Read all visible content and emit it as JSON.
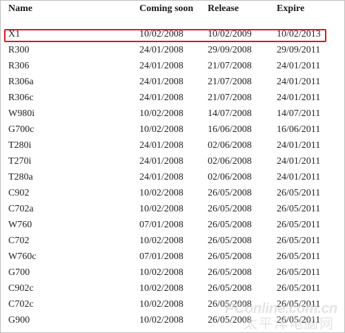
{
  "table": {
    "headers": [
      "Name",
      "Coming soon",
      "Release",
      "Expire"
    ],
    "rows": [
      [
        "X1",
        "10/02/2008",
        "10/02/2009",
        "10/02/2013"
      ],
      [
        "R300",
        "24/01/2008",
        "29/09/2008",
        "29/09/2011"
      ],
      [
        "R306",
        "24/01/2008",
        "21/07/2008",
        "24/01/2011"
      ],
      [
        "R306a",
        "24/01/2008",
        "21/07/2008",
        "24/01/2011"
      ],
      [
        "R306c",
        "24/01/2008",
        "21/07/2008",
        "24/01/2011"
      ],
      [
        "W980i",
        "10/02/2008",
        "14/07/2008",
        "14/07/2011"
      ],
      [
        "G700c",
        "10/02/2008",
        "16/06/2008",
        "16/06/2011"
      ],
      [
        "T280i",
        "24/01/2008",
        "02/06/2008",
        "24/01/2011"
      ],
      [
        "T270i",
        "24/01/2008",
        "02/06/2008",
        "24/01/2011"
      ],
      [
        "T280a",
        "24/01/2008",
        "02/06/2008",
        "24/01/2011"
      ],
      [
        "C902",
        "10/02/2008",
        "26/05/2008",
        "26/05/2011"
      ],
      [
        "C702a",
        "10/02/2008",
        "26/05/2008",
        "26/05/2011"
      ],
      [
        "W760",
        "07/01/2008",
        "26/05/2008",
        "26/05/2011"
      ],
      [
        "C702",
        "10/02/2008",
        "26/05/2008",
        "26/05/2011"
      ],
      [
        "W760c",
        "07/01/2008",
        "26/05/2008",
        "26/05/2011"
      ],
      [
        "G700",
        "10/02/2008",
        "26/05/2008",
        "26/05/2011"
      ],
      [
        "C902c",
        "10/02/2008",
        "26/05/2008",
        "26/05/2011"
      ],
      [
        "C702c",
        "10/02/2008",
        "26/05/2008",
        "26/05/2011"
      ],
      [
        "G900",
        "10/02/2008",
        "26/05/2008",
        "26/05/2011"
      ]
    ],
    "highlighted_row": "X1"
  },
  "watermark": {
    "logo_text": "PConline.com.cn",
    "cn_text": "太平洋电脑网"
  },
  "colors": {
    "highlight_border": "#e0141e",
    "text": "#222222"
  }
}
